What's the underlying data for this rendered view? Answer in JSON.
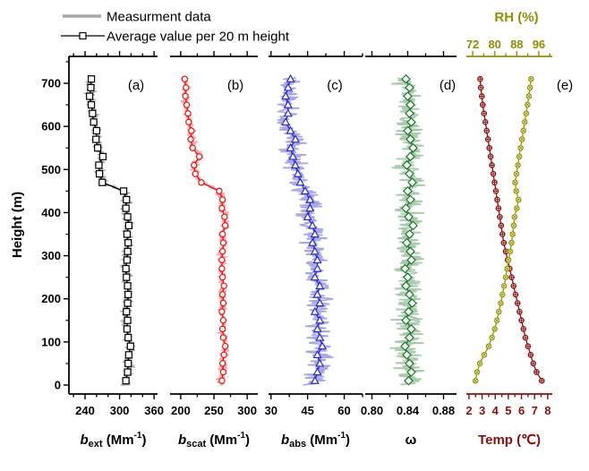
{
  "legend": {
    "items": [
      {
        "label": "Measurment data",
        "type": "line",
        "color": "#a8a8a8"
      },
      {
        "label": "Average value per 20 m height",
        "type": "line-square",
        "color": "#000000"
      }
    ]
  },
  "y_axis": {
    "title": "Height (m)",
    "tick_labels": [
      "0",
      "100",
      "200",
      "300",
      "400",
      "500",
      "600",
      "700"
    ],
    "tick_values": [
      0,
      100,
      200,
      300,
      400,
      500,
      600,
      700
    ],
    "minor_ticks": [
      50,
      150,
      250,
      350,
      450,
      550,
      650,
      750
    ],
    "range": [
      -21,
      762
    ]
  },
  "chart_data": {
    "type": "line",
    "orientation": "vertical-profile",
    "heights_m": [
      10,
      30,
      50,
      70,
      90,
      110,
      130,
      150,
      170,
      190,
      210,
      230,
      250,
      270,
      290,
      310,
      330,
      350,
      370,
      390,
      410,
      430,
      450,
      470,
      490,
      510,
      530,
      550,
      570,
      590,
      610,
      630,
      650,
      670,
      690,
      710
    ],
    "panels": [
      {
        "id": "a",
        "panel_label": "(a)",
        "title": {
          "symbol": "b",
          "italic": true,
          "sub": "ext",
          "unit": " (Mm",
          "sup": "-1",
          "close": ")"
        },
        "line_color": "#000000",
        "band_color": "#adadad",
        "marker": "square",
        "x_range": [
          212,
          366
        ],
        "tick_values": [
          240,
          300,
          360
        ],
        "tick_labels": [
          "240",
          "300",
          "360"
        ],
        "minor_ticks": [
          220,
          260,
          280,
          320,
          340
        ],
        "band_halfwidth": 12,
        "values": [
          311,
          314,
          315,
          316,
          319,
          315,
          313,
          314,
          312,
          314,
          315,
          314,
          312,
          311,
          313,
          314,
          315,
          313,
          316,
          314,
          311,
          312,
          307,
          270,
          265,
          264,
          271,
          262,
          259,
          260,
          255,
          253,
          251,
          248,
          250,
          251
        ]
      },
      {
        "id": "b",
        "panel_label": "(b)",
        "title": {
          "symbol": "b",
          "italic": true,
          "sub": "scat",
          "unit": " (Mm",
          "sup": "-1",
          "close": ")"
        },
        "line_color": "#f01010",
        "band_color": "#f3abab",
        "marker": "circle",
        "x_range": [
          184,
          316
        ],
        "tick_values": [
          200,
          250,
          300
        ],
        "tick_labels": [
          "200",
          "250",
          "300"
        ],
        "minor_ticks": [
          225,
          275
        ],
        "band_halfwidth": 9,
        "values": [
          262,
          264,
          263,
          265,
          267,
          264,
          263,
          264,
          262,
          264,
          263,
          265,
          263,
          262,
          262,
          263,
          264,
          263,
          267,
          266,
          262,
          263,
          258,
          231,
          222,
          220,
          228,
          218,
          215,
          216,
          212,
          211,
          209,
          207,
          208,
          206
        ]
      },
      {
        "id": "c",
        "panel_label": "(c)",
        "title": {
          "symbol": "b",
          "italic": true,
          "sub": "abs",
          "unit": " (Mm",
          "sup": "-1",
          "close": ")"
        },
        "line_color": "#2b2bd0",
        "band_color": "#a8a8e2",
        "marker": "triangle",
        "x_range": [
          29,
          67.5
        ],
        "tick_values": [
          30,
          45,
          60
        ],
        "tick_labels": [
          "30",
          "45",
          "60"
        ],
        "minor_ticks": [
          37.5,
          52.5,
          67.5
        ],
        "band_halfwidth": 6.5,
        "values": [
          48,
          49,
          50,
          49,
          51,
          50,
          49,
          50,
          48,
          50,
          49,
          50,
          48,
          49,
          49,
          48,
          47,
          48,
          47,
          45,
          46,
          46,
          44,
          42,
          41,
          40,
          39,
          38,
          40,
          38,
          36,
          37,
          37,
          36,
          37,
          38
        ]
      },
      {
        "id": "d",
        "panel_label": "(d)",
        "title": {
          "symbol": "ω",
          "italic": false
        },
        "line_color": "#1c7a2e",
        "band_color": "#a9caab",
        "marker": "diamond",
        "x_range": [
          0.7925,
          0.8945
        ],
        "tick_values": [
          0.8,
          0.84,
          0.88
        ],
        "tick_labels": [
          "0.80",
          "0.84",
          "0.88"
        ],
        "minor_ticks": [
          0.82,
          0.86
        ],
        "band_halfwidth": 0.02,
        "values": [
          0.841,
          0.844,
          0.842,
          0.839,
          0.837,
          0.842,
          0.844,
          0.838,
          0.841,
          0.845,
          0.842,
          0.838,
          0.84,
          0.837,
          0.844,
          0.843,
          0.839,
          0.842,
          0.846,
          0.841,
          0.838,
          0.843,
          0.84,
          0.845,
          0.842,
          0.839,
          0.843,
          0.846,
          0.843,
          0.84,
          0.844,
          0.842,
          0.843,
          0.84,
          0.842,
          0.838
        ]
      }
    ],
    "panel_e": {
      "id": "e",
      "panel_label": "(e)",
      "bottom_axis": {
        "title": "Temp (℃)",
        "color": "#8b0f0f",
        "tick_values": [
          2,
          3,
          4,
          5,
          6,
          7,
          8
        ],
        "tick_labels": [
          "2",
          "3",
          "4",
          "5",
          "6",
          "7",
          "8"
        ],
        "minor_ticks": [
          2.5,
          3.5,
          4.5,
          5.5,
          6.5,
          7.5
        ],
        "range": [
          1.8,
          8.35
        ]
      },
      "top_axis": {
        "title": "RH (%)",
        "color": "#8f8f00",
        "tick_values": [
          72,
          80,
          88,
          96
        ],
        "tick_labels": [
          "72",
          "80",
          "88",
          "96"
        ],
        "minor_ticks": [
          76,
          84,
          92,
          100
        ],
        "range": [
          69.7,
          100.9
        ]
      },
      "series": [
        {
          "name": "Temp",
          "axis": "bottom",
          "color": "#8b0f0f",
          "marker": "circle-plus",
          "values": [
            7.55,
            7.15,
            6.9,
            6.7,
            6.5,
            6.3,
            6.15,
            6.0,
            5.85,
            5.7,
            5.55,
            5.4,
            5.25,
            5.1,
            4.95,
            4.8,
            4.65,
            4.55,
            4.45,
            4.35,
            4.25,
            4.15,
            4.05,
            3.95,
            3.85,
            3.75,
            3.65,
            3.55,
            3.45,
            3.35,
            3.25,
            3.15,
            3.05,
            2.98,
            2.9,
            2.85
          ]
        },
        {
          "name": "RH",
          "axis": "top",
          "color": "#97970a",
          "marker": "circle-x",
          "values": [
            73.0,
            73.6,
            74.6,
            76.2,
            77.8,
            79.0,
            80.0,
            80.8,
            81.5,
            82.2,
            82.8,
            83.4,
            84.0,
            84.5,
            85.0,
            85.6,
            86.1,
            86.5,
            86.9,
            87.2,
            88.0,
            88.6,
            87.8,
            87.4,
            87.9,
            88.4,
            88.9,
            89.4,
            89.9,
            90.4,
            90.9,
            91.4,
            91.9,
            92.4,
            92.8,
            93.2
          ]
        }
      ]
    }
  }
}
